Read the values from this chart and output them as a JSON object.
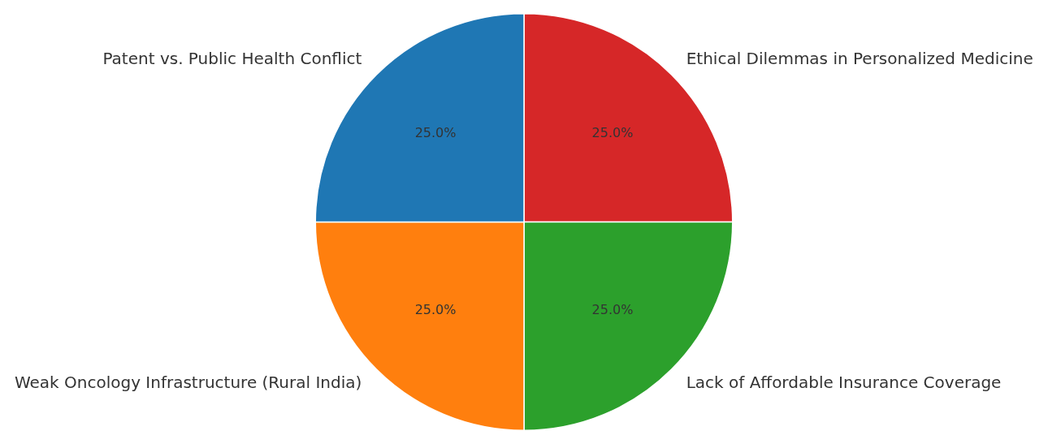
{
  "chart_data": {
    "type": "pie",
    "categories": [
      "Ethical Dilemmas in Personalized Medicine",
      "Lack of Affordable Insurance Coverage",
      "Weak Oncology Infrastructure (Rural India)",
      "Patent vs. Public Health Conflict"
    ],
    "values": [
      25,
      25,
      25,
      25
    ],
    "colors": [
      "#d62728",
      "#2ca02c",
      "#ff7f0e",
      "#1f77b4"
    ],
    "value_labels": [
      "25.0%",
      "25.0%",
      "25.0%",
      "25.0%"
    ]
  }
}
